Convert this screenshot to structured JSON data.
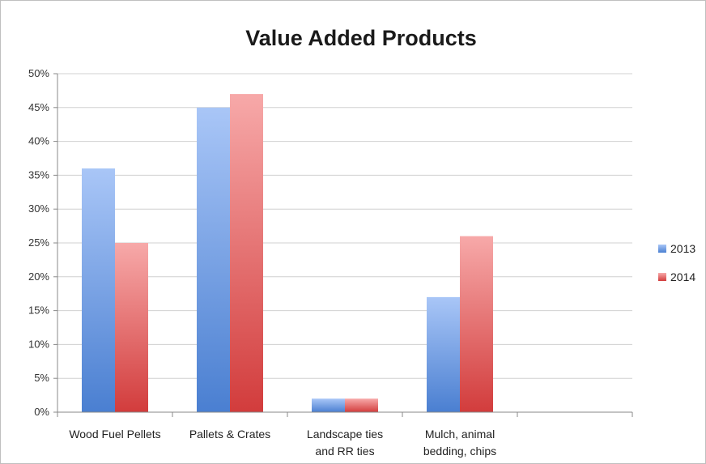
{
  "chart_data": {
    "type": "bar",
    "title": "Value Added Products",
    "categories": [
      [
        "Wood Fuel Pellets"
      ],
      [
        "Pallets & Crates"
      ],
      [
        "Landscape ties",
        "and RR ties"
      ],
      [
        "Mulch, animal",
        "bedding, chips"
      ],
      [
        ""
      ]
    ],
    "series": [
      {
        "name": "2013",
        "values": [
          36,
          45,
          2,
          17,
          null
        ],
        "color": "#4a7fd1",
        "color_light": "#a9c6f7"
      },
      {
        "name": "2014",
        "values": [
          25,
          47,
          2,
          26,
          null
        ],
        "color": "#d23c3c",
        "color_light": "#f7a9a9"
      }
    ],
    "ylim": [
      0,
      50
    ],
    "yticks": [
      "0%",
      "5%",
      "10%",
      "15%",
      "20%",
      "25%",
      "30%",
      "35%",
      "40%",
      "45%",
      "50%"
    ],
    "grid": true,
    "legend_position": "right"
  }
}
